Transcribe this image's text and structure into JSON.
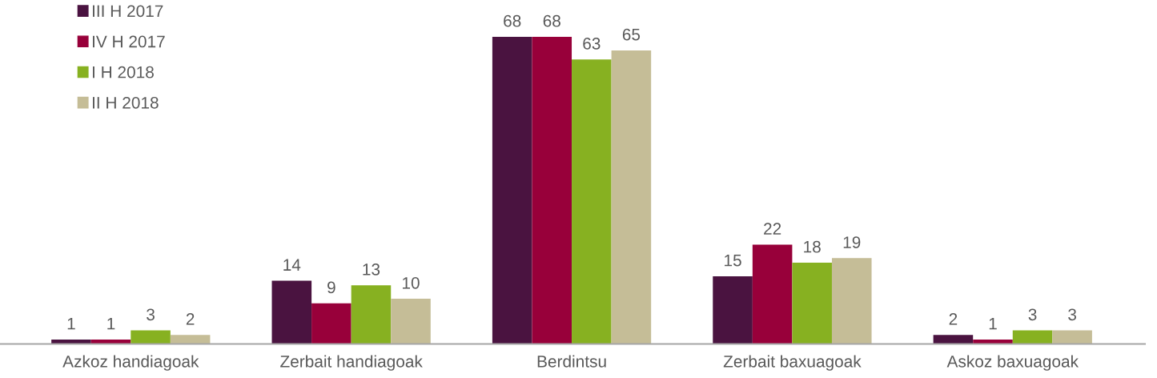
{
  "chart_data": {
    "type": "bar",
    "categories": [
      "Azkoz handiagoak",
      "Zerbait handiagoak",
      "Berdintsu",
      "Zerbait baxuagoak",
      "Askoz baxuagoak"
    ],
    "series": [
      {
        "name": "III H 2017",
        "color": "#4a1340",
        "values": [
          1,
          14,
          68,
          15,
          2
        ]
      },
      {
        "name": "IV H 2017",
        "color": "#98003a",
        "values": [
          1,
          9,
          68,
          22,
          1
        ]
      },
      {
        "name": "I H 2018",
        "color": "#87b121",
        "values": [
          3,
          13,
          63,
          18,
          3
        ]
      },
      {
        "name": "II H 2018",
        "color": "#c5bd97",
        "values": [
          2,
          10,
          65,
          19,
          3
        ]
      }
    ],
    "data_labels": true,
    "legend": "top left",
    "grid": false
  }
}
